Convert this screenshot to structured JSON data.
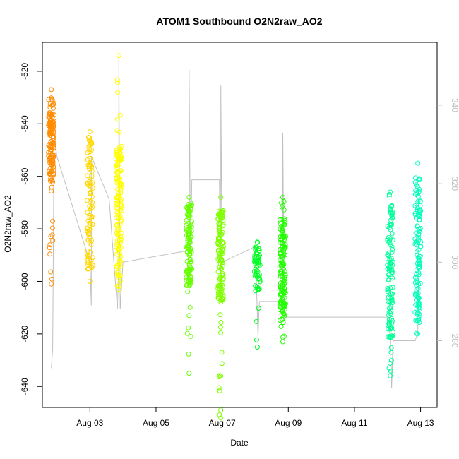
{
  "chart_data": {
    "type": "scatter",
    "title": "ATOM1 Southbound O2N2raw_AO2",
    "xlabel": "Date",
    "ylabel": "O2N2raw_AO2",
    "x_ticks": [
      "Aug 03",
      "Aug 05",
      "Aug 07",
      "Aug 09",
      "Aug 11",
      "Aug 13"
    ],
    "y_ticks": [
      -520,
      -540,
      -560,
      -580,
      -600,
      -620,
      -640
    ],
    "y_ticks_right": [
      340,
      320,
      300,
      280
    ],
    "xlim": [
      "Aug 01 13:30",
      "Aug 13 12:00"
    ],
    "ylim": [
      -648,
      -509
    ],
    "ylim_right": [
      263,
      356
    ],
    "grid": false,
    "marker": "open-circle",
    "series": [
      {
        "color": "#ff8c00",
        "x": "Aug 01 20:00",
        "y_range": [
          -601,
          -527
        ],
        "y_core": [
          -562,
          -530
        ],
        "n": 140
      },
      {
        "color": "#ffd700",
        "x": "Aug 03 00:00",
        "y_range": [
          -600,
          -543
        ],
        "y_core": [
          -596,
          -546
        ],
        "n": 90
      },
      {
        "color": "#ffff00",
        "x": "Aug 03 21:00",
        "y_range": [
          -603,
          -514
        ],
        "y_core": [
          -598,
          -548
        ],
        "n": 160
      },
      {
        "color": "#66ff00",
        "x": "Aug 06 00:00",
        "y_range": [
          -635,
          -568
        ],
        "y_core": [
          -602,
          -570
        ],
        "n": 120
      },
      {
        "color": "#80ff00",
        "x": "Aug 06 23:00",
        "y_range": [
          -652,
          -568
        ],
        "y_core": [
          -608,
          -572
        ],
        "n": 140
      },
      {
        "color": "#00ff22",
        "x": "Aug 08 01:30",
        "y_range": [
          -625,
          -585
        ],
        "y_core": [
          -605,
          -587
        ],
        "n": 60
      },
      {
        "color": "#22ff00",
        "x": "Aug 08 20:00",
        "y_range": [
          -623,
          -568
        ],
        "y_core": [
          -615,
          -576
        ],
        "n": 140
      },
      {
        "color": "#00ff99",
        "x": "Aug 12 02:00",
        "y_range": [
          -636,
          -566
        ],
        "y_core": [
          -622,
          -570
        ],
        "n": 120
      },
      {
        "color": "#00ffbb",
        "x": "Aug 12 22:00",
        "y_range": [
          -620,
          -555
        ],
        "y_core": [
          -615,
          -560
        ],
        "n": 120
      }
    ],
    "secondary_line": {
      "color": "#c0c0c0",
      "points": [
        [
          "Aug 01 20:00",
          273
        ],
        [
          "Aug 01 21:00",
          278
        ],
        [
          "Aug 01 22:00",
          333
        ],
        [
          "Aug 02 00:00",
          327
        ],
        [
          "Aug 03 00:00",
          300
        ],
        [
          "Aug 03 01:00",
          289
        ],
        [
          "Aug 03 01:00",
          327
        ],
        [
          "Aug 03 14:00",
          316
        ],
        [
          "Aug 03 20:00",
          288
        ],
        [
          "Aug 03 21:00",
          300
        ],
        [
          "Aug 03 21:00",
          352
        ],
        [
          "Aug 03 22:00",
          288
        ],
        [
          "Aug 04 00:00",
          300
        ],
        [
          "Aug 06 00:00",
          303
        ],
        [
          "Aug 06 00:00",
          349
        ],
        [
          "Aug 06 01:00",
          303
        ],
        [
          "Aug 06 02:00",
          321
        ],
        [
          "Aug 06 22:00",
          321
        ],
        [
          "Aug 06 23:00",
          290
        ],
        [
          "Aug 06 23:00",
          345
        ],
        [
          "Aug 07 00:00",
          300
        ],
        [
          "Aug 08 00:00",
          304
        ],
        [
          "Aug 08 02:00",
          281
        ],
        [
          "Aug 08 03:00",
          290
        ],
        [
          "Aug 08 20:00",
          290
        ],
        [
          "Aug 08 20:00",
          333
        ],
        [
          "Aug 08 21:00",
          286
        ],
        [
          "Aug 12 01:00",
          286
        ],
        [
          "Aug 12 02:00",
          280
        ],
        [
          "Aug 12 03:00",
          268
        ],
        [
          "Aug 12 04:00",
          280
        ],
        [
          "Aug 12 20:00",
          280
        ],
        [
          "Aug 12 22:00",
          282
        ],
        [
          "Aug 12 23:00",
          303
        ]
      ]
    }
  }
}
